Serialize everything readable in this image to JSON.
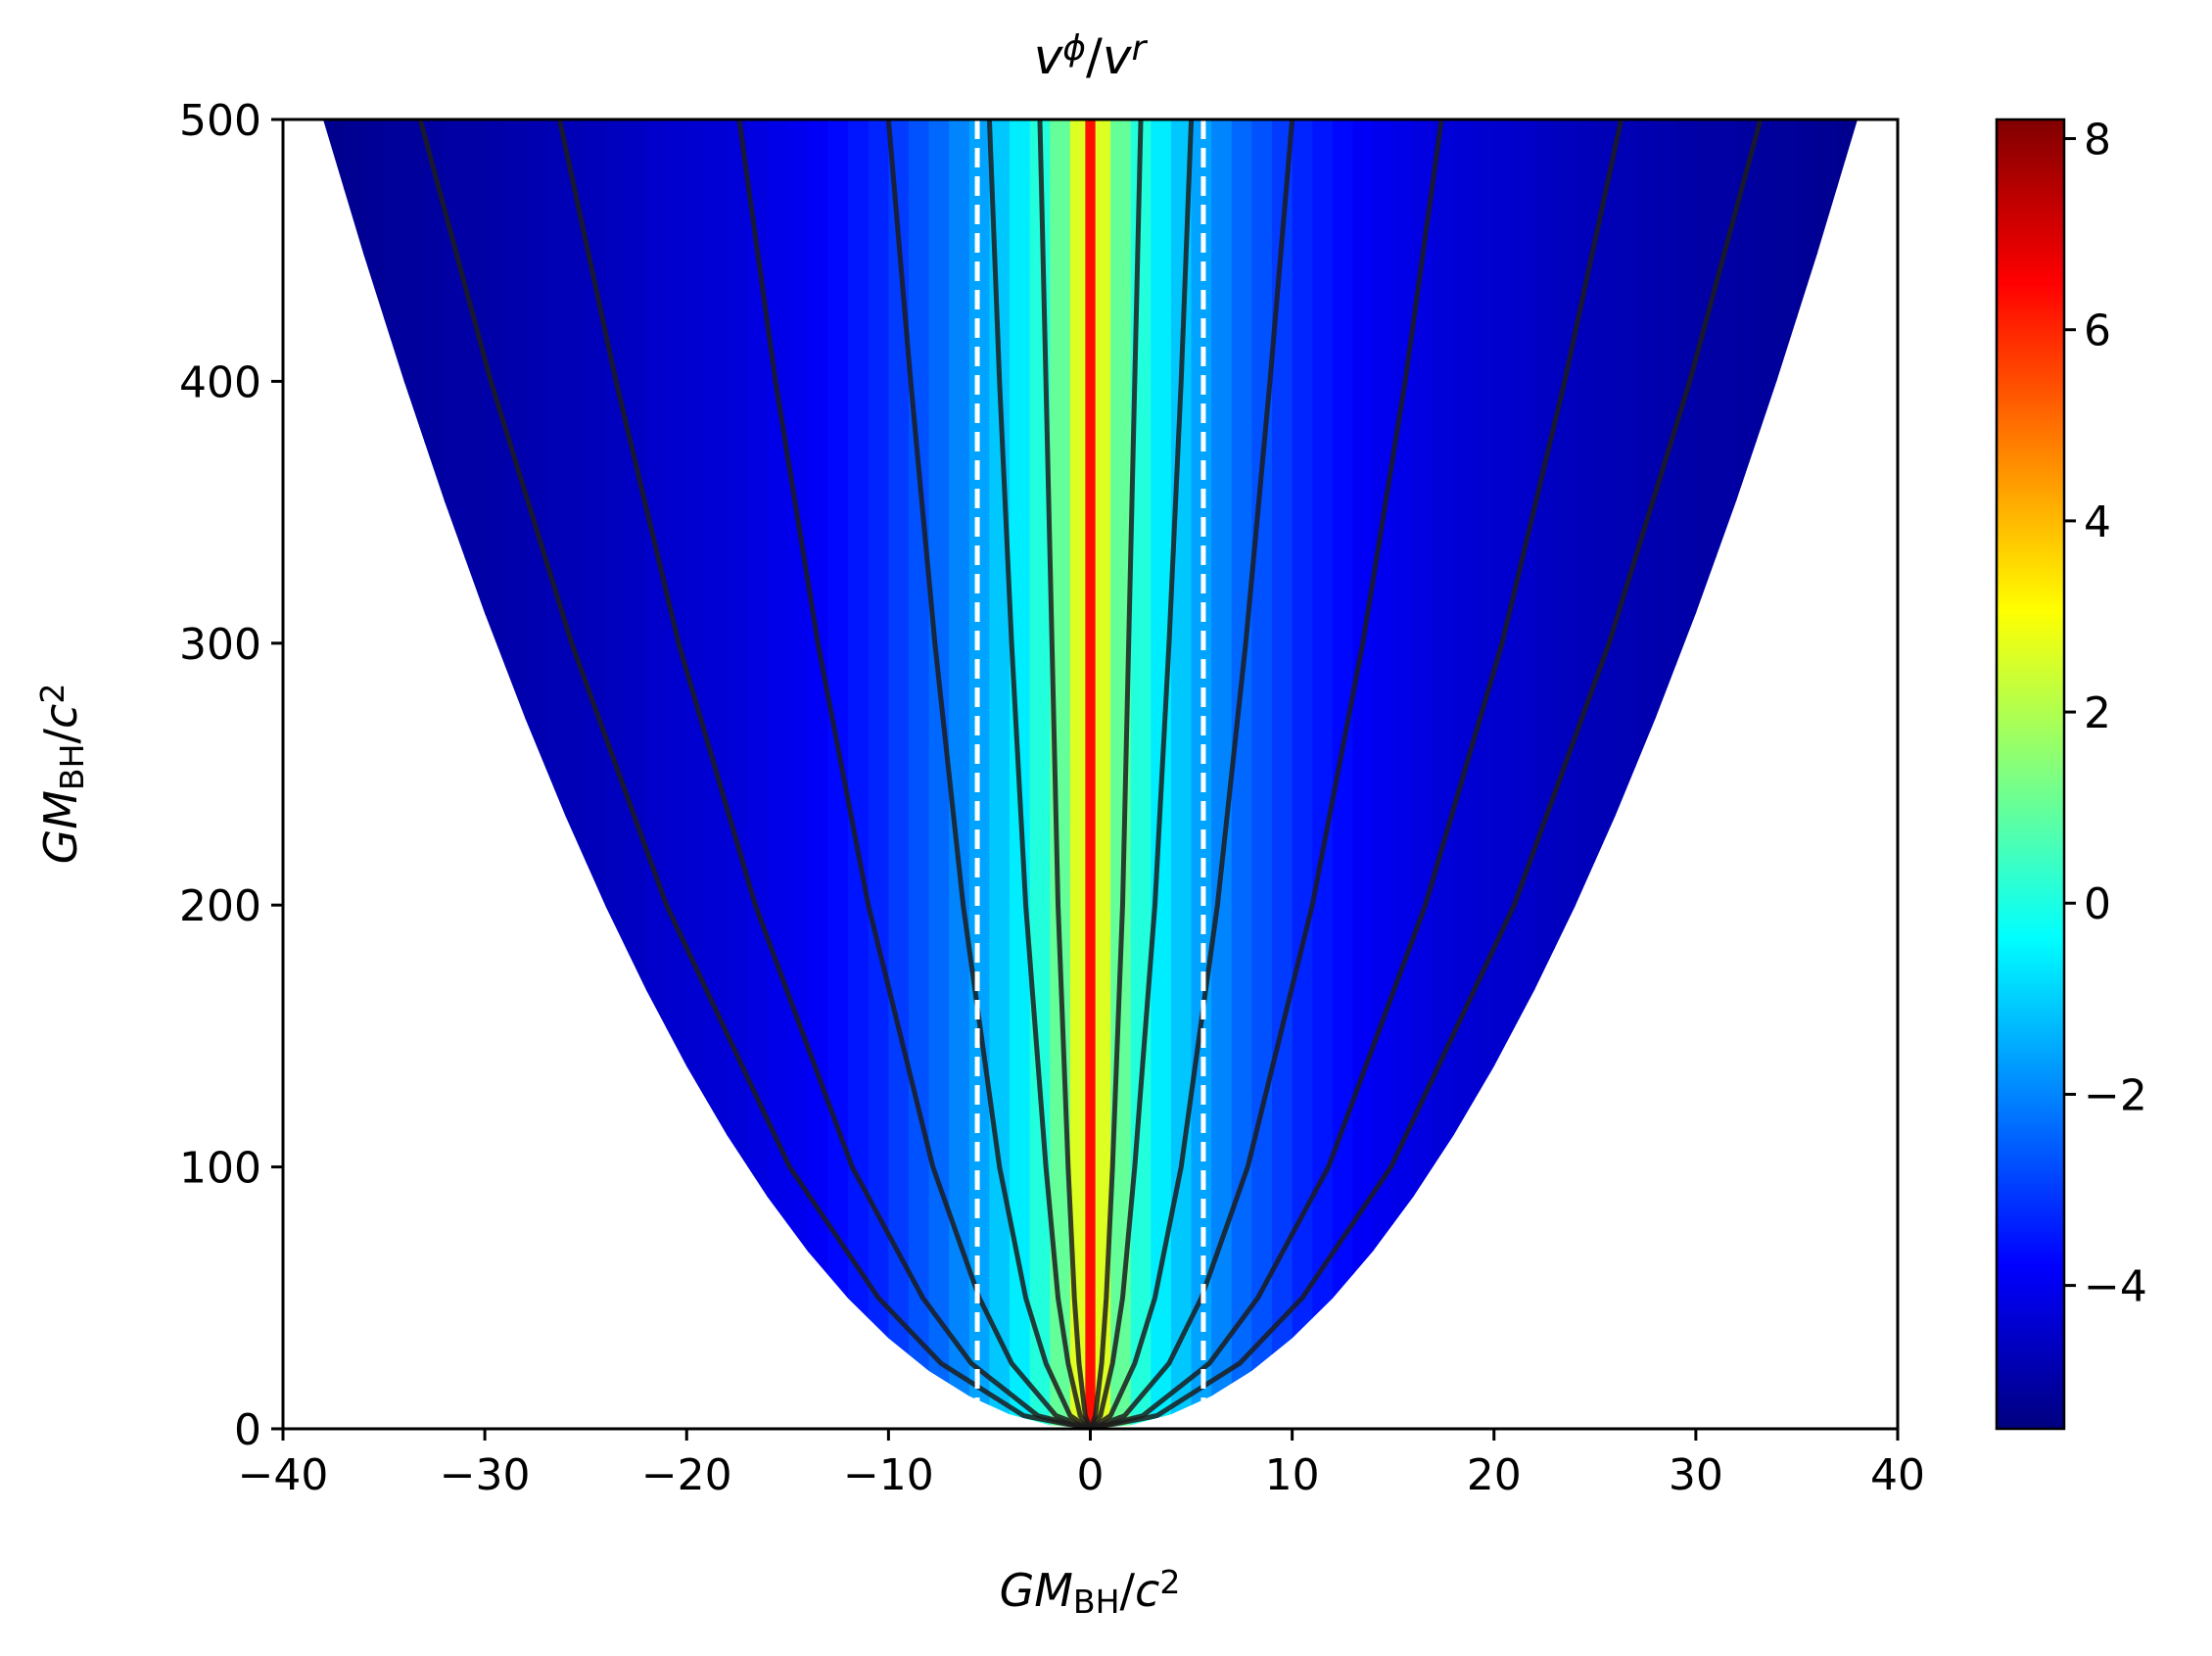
{
  "chart_data": {
    "type": "heatmap",
    "title": [
      {
        "text": "v",
        "italic": true
      },
      {
        "text": "ϕ",
        "italic": true,
        "pos": "sup"
      },
      {
        "text": "/"
      },
      {
        "text": "v",
        "italic": true
      },
      {
        "text": "r",
        "italic": true,
        "pos": "sup"
      }
    ],
    "xlabel": [
      {
        "text": "GM",
        "italic": true
      },
      {
        "text": "BH",
        "pos": "sub"
      },
      {
        "text": "/"
      },
      {
        "text": "c",
        "italic": true
      },
      {
        "text": "2",
        "pos": "sup"
      }
    ],
    "ylabel": [
      {
        "text": "GM",
        "italic": true
      },
      {
        "text": "BH",
        "pos": "sub"
      },
      {
        "text": "/"
      },
      {
        "text": "c",
        "italic": true
      },
      {
        "text": "2",
        "pos": "sup"
      }
    ],
    "xlim": [
      -40,
      40
    ],
    "ylim": [
      0,
      500
    ],
    "xticks": [
      {
        "value": -40,
        "label": "−40"
      },
      {
        "value": -30,
        "label": "−30"
      },
      {
        "value": -20,
        "label": "−20"
      },
      {
        "value": -10,
        "label": "−10"
      },
      0,
      10,
      20,
      30,
      40
    ],
    "yticks": [
      0,
      100,
      200,
      300,
      400,
      500
    ],
    "colormap": "jet",
    "clim": [
      -5.5,
      8.2
    ],
    "cticks": [
      {
        "value": -4,
        "label": "−4"
      },
      {
        "value": -2,
        "label": "−2"
      },
      0,
      2,
      4,
      6,
      8
    ],
    "heatmap": {
      "bins": [
        -38,
        -37,
        -36,
        -35,
        -34,
        -33,
        -32,
        -31,
        -30,
        -29,
        -28,
        -27,
        -26,
        -25,
        -24,
        -23,
        -22,
        -21,
        -20,
        -19,
        -18,
        -17,
        -16,
        -15,
        -14,
        -13,
        -12,
        -11,
        -10,
        -9,
        -8,
        -7,
        -6,
        -5,
        -4,
        -3,
        -2,
        -1,
        -0.25,
        0.25,
        1,
        2,
        3,
        4,
        5,
        6,
        7,
        8,
        9,
        10,
        11,
        12,
        13,
        14,
        15,
        16,
        17,
        18,
        19,
        20,
        21,
        22,
        23,
        24,
        25,
        26,
        27,
        28,
        29,
        30,
        31,
        32,
        33,
        34,
        35,
        36,
        37,
        38
      ],
      "values": [
        -5.3,
        -5.25,
        -5.2,
        -5.15,
        -5.1,
        -5.05,
        -5.0,
        -5.0,
        -4.95,
        -4.9,
        -4.85,
        -4.8,
        -4.75,
        -4.7,
        -4.65,
        -4.6,
        -4.5,
        -4.45,
        -4.4,
        -4.35,
        -4.3,
        -4.2,
        -4.1,
        -4.0,
        -3.9,
        -3.7,
        -3.5,
        -3.3,
        -3.0,
        -2.7,
        -2.4,
        -2.0,
        -1.6,
        -1.1,
        -0.6,
        0.1,
        1.0,
        2.6,
        6.3,
        2.6,
        1.0,
        0.1,
        -0.6,
        -1.1,
        -1.6,
        -2.0,
        -2.4,
        -2.7,
        -3.0,
        -3.3,
        -3.5,
        -3.7,
        -3.9,
        -4.0,
        -4.1,
        -4.2,
        -4.3,
        -4.35,
        -4.4,
        -4.45,
        -4.5,
        -4.6,
        -4.65,
        -4.7,
        -4.75,
        -4.8,
        -4.85,
        -4.9,
        -4.95,
        -5.0,
        -5.0,
        -5.05,
        -5.1,
        -5.15,
        -5.2,
        -5.25,
        -5.3
      ]
    },
    "boundary": {
      "x": [
        -38,
        -36,
        -34,
        -32,
        -30,
        -28,
        -26,
        -24,
        -22,
        -20,
        -18,
        -16,
        -14,
        -12,
        -10,
        -8,
        -6,
        -4,
        -2,
        0,
        2,
        4,
        6,
        8,
        10,
        12,
        14,
        16,
        18,
        20,
        22,
        24,
        26,
        28,
        30,
        32,
        34,
        36,
        38
      ],
      "y": [
        499.7,
        448.4,
        400,
        354.3,
        311.4,
        271.3,
        233.9,
        199.3,
        167.5,
        138.4,
        112.1,
        88.6,
        67.8,
        49.8,
        34.6,
        22.1,
        12.5,
        5.5,
        1.4,
        0,
        1.4,
        5.5,
        12.5,
        22.1,
        34.6,
        49.8,
        67.8,
        88.6,
        112.1,
        138.4,
        167.5,
        199.3,
        233.9,
        271.3,
        311.4,
        354.3,
        400,
        448.4,
        499.7
      ]
    },
    "contours": {
      "color": "#1c1c1c",
      "y": [
        0,
        5,
        25,
        50,
        100,
        200,
        300,
        400,
        500
      ],
      "series": [
        {
          "x": [
            0,
            -3.3,
            -7.4,
            -10.5,
            -14.9,
            -21.0,
            -25.7,
            -29.7,
            -33.2
          ]
        },
        {
          "x": [
            0,
            -2.6,
            -5.9,
            -8.3,
            -11.8,
            -16.6,
            -20.4,
            -23.5,
            -26.3
          ]
        },
        {
          "x": [
            0,
            -1.7,
            -3.9,
            -5.5,
            -7.8,
            -11.0,
            -13.5,
            -15.6,
            -17.4
          ]
        },
        {
          "x": [
            0,
            -1.0,
            -2.2,
            -3.2,
            -4.5,
            -6.3,
            -7.7,
            -8.9,
            -10.0
          ]
        },
        {
          "x": [
            0,
            -0.5,
            -1.1,
            -1.6,
            -2.2,
            -3.2,
            -3.9,
            -4.5,
            -5.0
          ]
        },
        {
          "x": [
            0,
            -0.25,
            -0.56,
            -0.79,
            -1.1,
            -1.6,
            -1.9,
            -2.2,
            -2.5
          ]
        },
        {
          "x": [
            0,
            0.25,
            0.56,
            0.79,
            1.1,
            1.6,
            1.9,
            2.2,
            2.5
          ]
        },
        {
          "x": [
            0,
            0.5,
            1.1,
            1.6,
            2.2,
            3.2,
            3.9,
            4.5,
            5.0
          ]
        },
        {
          "x": [
            0,
            1.0,
            2.2,
            3.2,
            4.5,
            6.3,
            7.7,
            8.9,
            10.0
          ]
        },
        {
          "x": [
            0,
            1.7,
            3.9,
            5.5,
            7.8,
            11.0,
            13.5,
            15.6,
            17.4
          ]
        },
        {
          "x": [
            0,
            2.6,
            5.9,
            8.3,
            11.8,
            16.6,
            20.4,
            23.5,
            26.3
          ]
        },
        {
          "x": [
            0,
            3.3,
            7.4,
            10.5,
            14.9,
            21.0,
            25.7,
            29.7,
            33.2
          ]
        }
      ]
    },
    "vlines": [
      -5.6,
      5.6
    ],
    "vline_color": "#ffffff"
  }
}
